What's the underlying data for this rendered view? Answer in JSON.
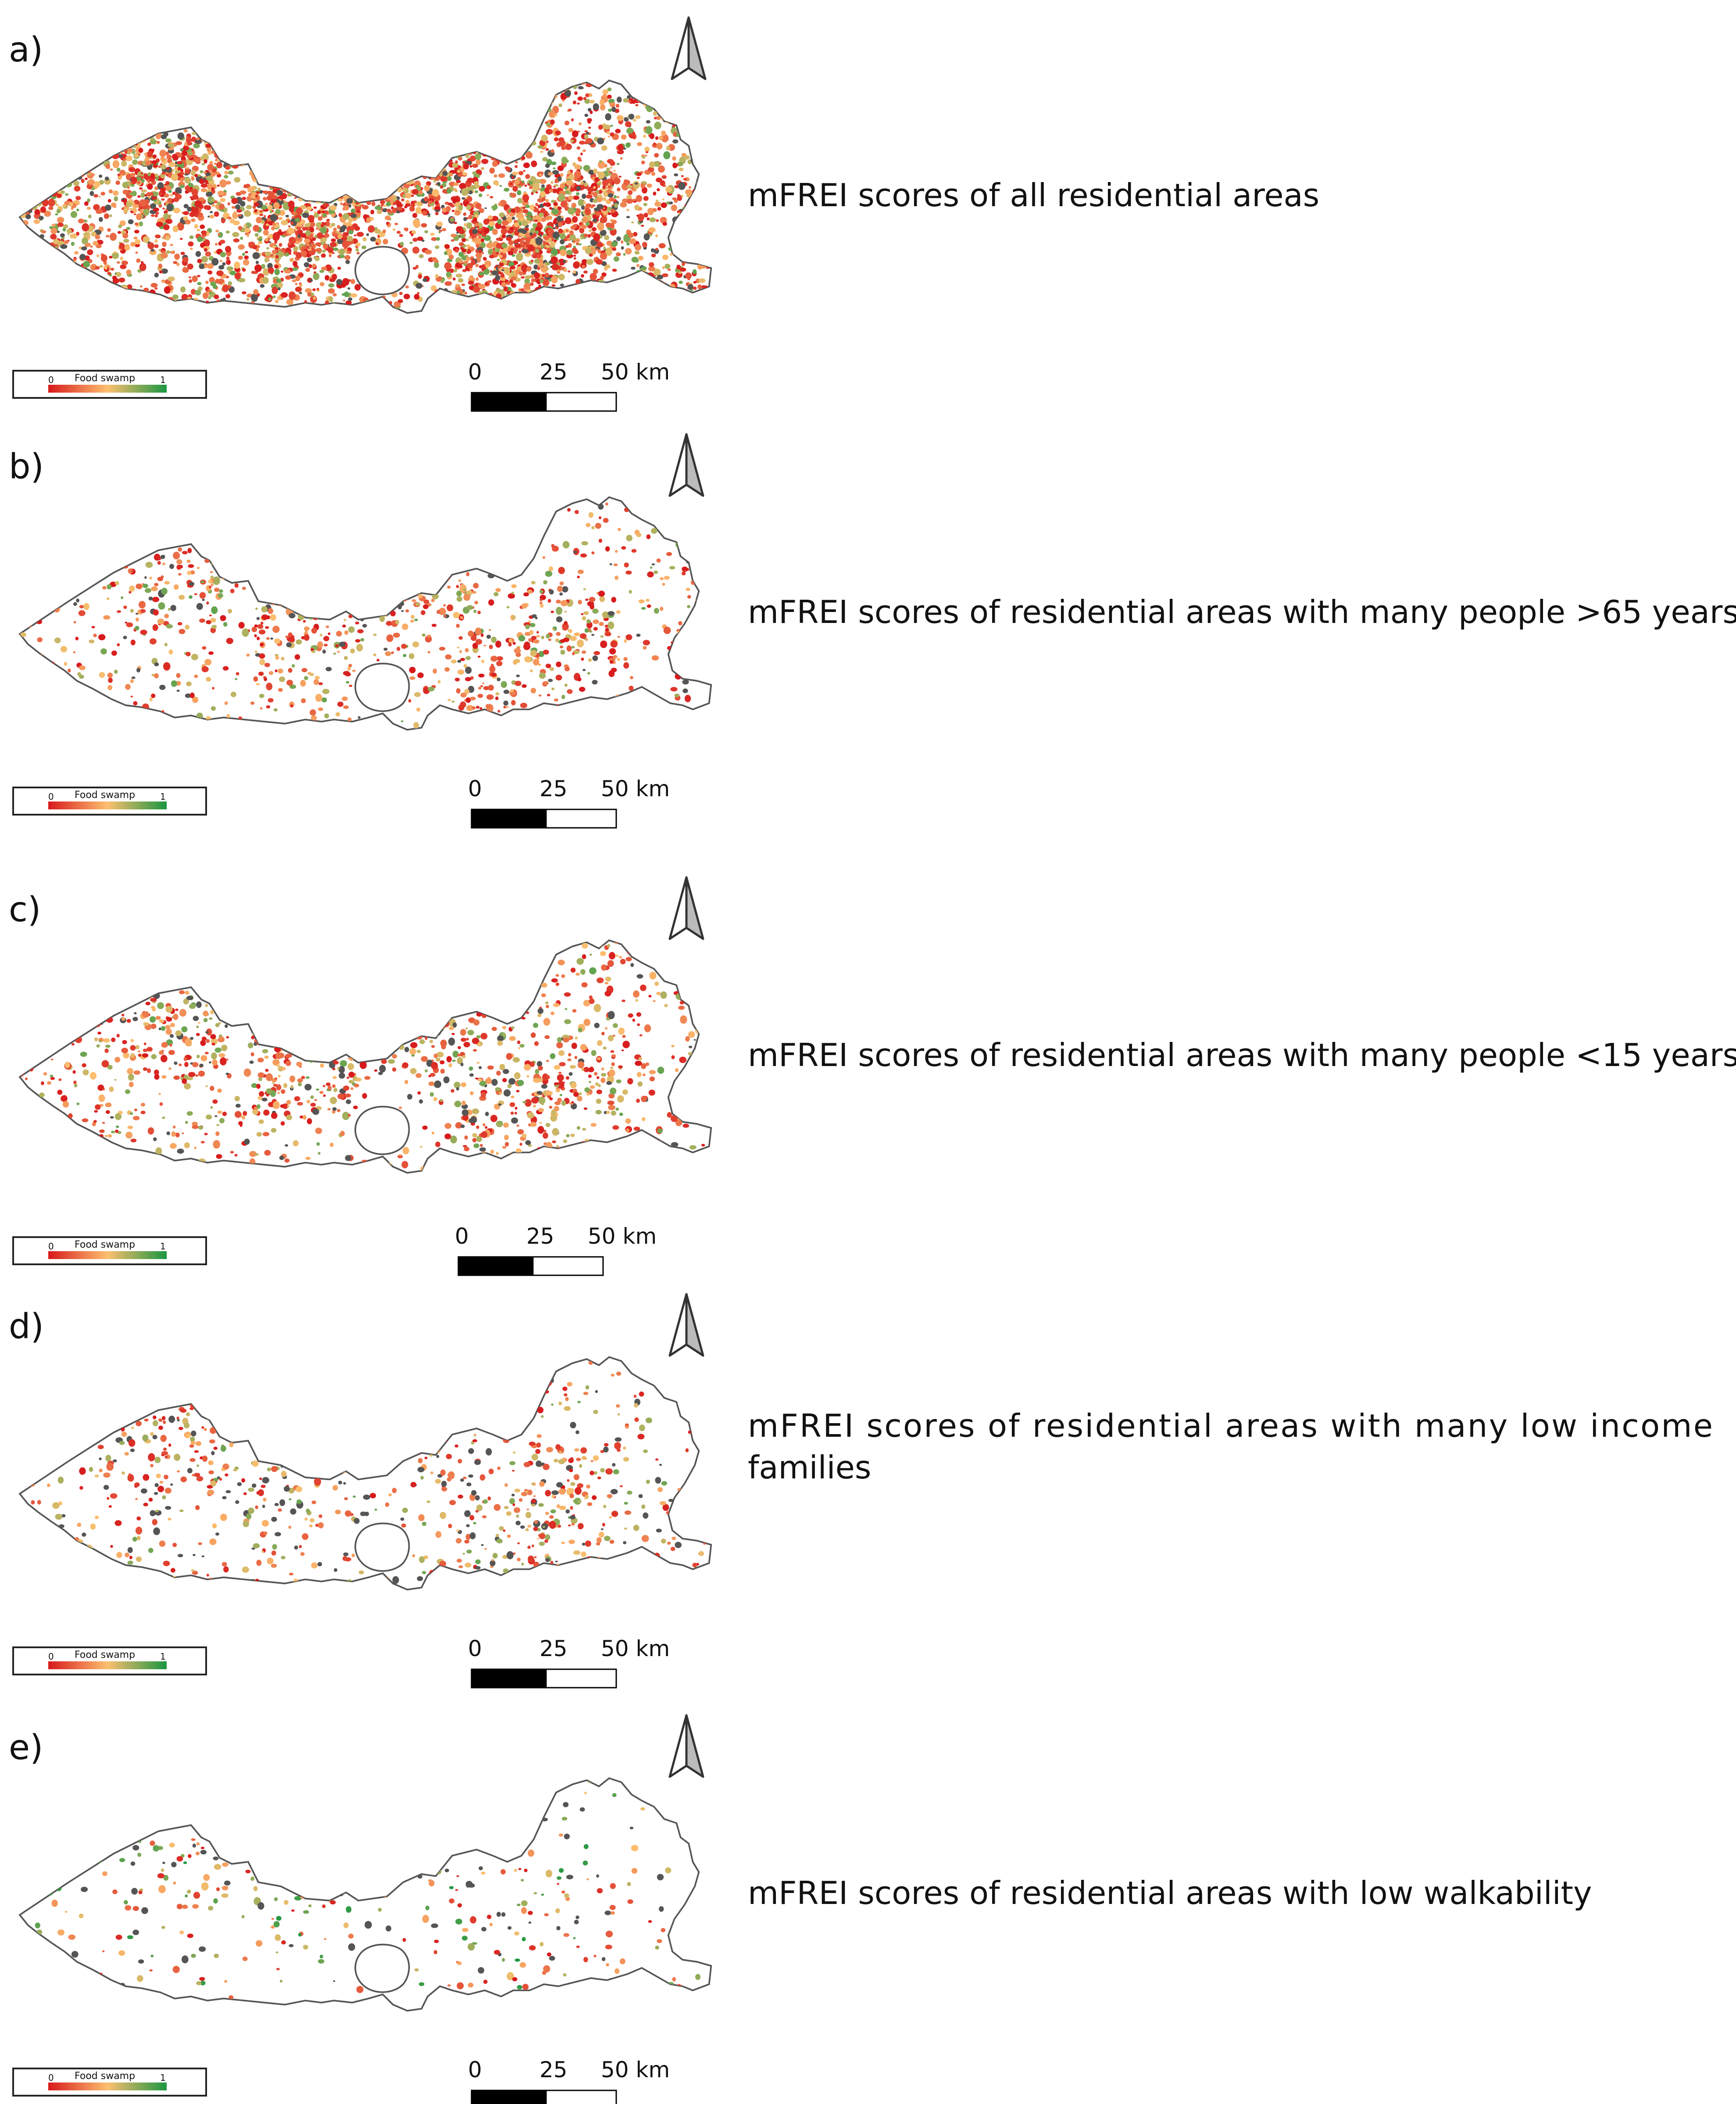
{
  "panels": [
    {
      "id": "a",
      "label": "a)",
      "caption_lines": [
        "mFREI scores of all residential areas"
      ],
      "caption_justified": false,
      "legend": {
        "title": "Food swamp",
        "min": "0",
        "max": "1"
      },
      "scalebar": {
        "labels": [
          "0",
          "25",
          "50 km"
        ]
      },
      "density": 1.0
    },
    {
      "id": "b",
      "label": "b)",
      "caption_lines": [
        "mFREI scores of residential areas with many people >65 years"
      ],
      "caption_justified": false,
      "legend": {
        "title": "Food swamp",
        "min": "0",
        "max": "1"
      },
      "scalebar": {
        "labels": [
          "0",
          "25",
          "50 km"
        ]
      },
      "density": 0.25
    },
    {
      "id": "c",
      "label": "c)",
      "caption_lines": [
        "mFREI scores of residential areas with many people <15 years"
      ],
      "caption_justified": false,
      "legend": {
        "title": "Food swamp",
        "min": "0",
        "max": "1"
      },
      "scalebar": {
        "labels": [
          "0",
          "25",
          "50 km"
        ]
      },
      "density": 0.28
    },
    {
      "id": "d",
      "label": "d)",
      "caption_lines": [
        "mFREI scores of residential areas with many low income",
        "families"
      ],
      "caption_justified": true,
      "legend": {
        "title": "Food swamp",
        "min": "0",
        "max": "1"
      },
      "scalebar": {
        "labels": [
          "0",
          "25",
          "50 km"
        ]
      },
      "density": 0.2
    },
    {
      "id": "e",
      "label": "e)",
      "caption_lines": [
        "mFREI scores of residential areas with low walkability"
      ],
      "caption_justified": false,
      "legend": {
        "title": "Food swamp",
        "min": "0",
        "max": "1"
      },
      "scalebar": {
        "labels": [
          "0",
          "25",
          "50 km"
        ]
      },
      "density": 0.08
    }
  ],
  "colors": {
    "food_swamp_low": "#d7191c",
    "food_swamp_mid": "#fdbf6f",
    "food_swamp_high": "#1a9641",
    "no_data": "#555555",
    "boundary": "#555555"
  }
}
